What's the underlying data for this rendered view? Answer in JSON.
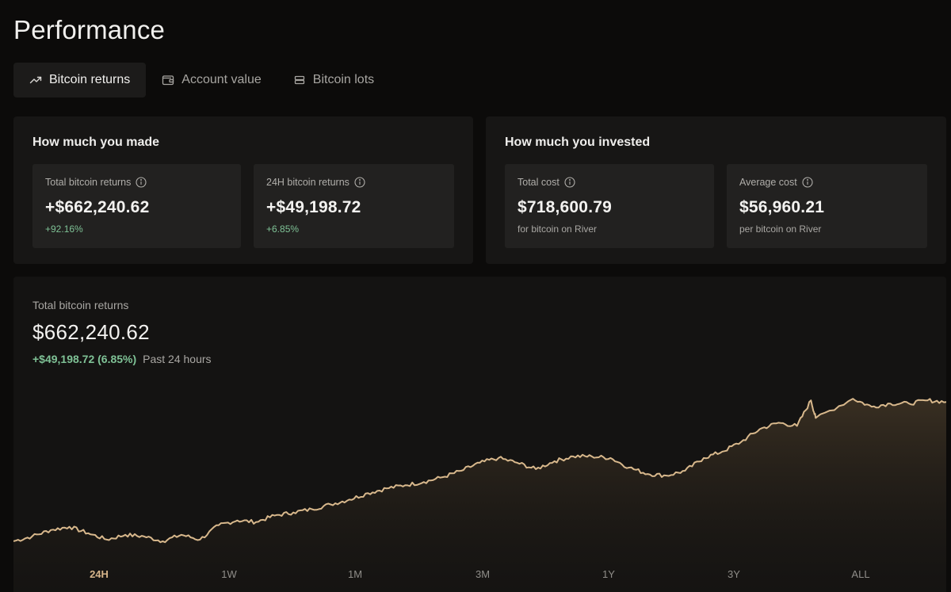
{
  "page": {
    "title": "Performance"
  },
  "tabs": [
    {
      "label": "Bitcoin returns",
      "icon": "trending-up-icon",
      "active": true
    },
    {
      "label": "Account value",
      "icon": "wallet-icon",
      "active": false
    },
    {
      "label": "Bitcoin lots",
      "icon": "stack-icon",
      "active": false
    }
  ],
  "made": {
    "title": "How much you made",
    "total": {
      "label": "Total bitcoin returns",
      "value": "+$662,240.62",
      "sub": "+92.16%"
    },
    "day": {
      "label": "24H bitcoin returns",
      "value": "+$49,198.72",
      "sub": "+6.85%"
    }
  },
  "invested": {
    "title": "How much you invested",
    "total": {
      "label": "Total cost",
      "value": "$718,600.79",
      "sub": "for bitcoin on River"
    },
    "avg": {
      "label": "Average cost",
      "value": "$56,960.21",
      "sub": "per bitcoin on River"
    }
  },
  "chart": {
    "label": "Total bitcoin returns",
    "value": "$662,240.62",
    "change": "+$49,198.72 (6.85%)",
    "period": "Past 24 hours",
    "ranges": [
      "24H",
      "1W",
      "1M",
      "3M",
      "1Y",
      "3Y",
      "ALL"
    ],
    "active_range": "24H"
  },
  "colors": {
    "accent": "#d6b48a",
    "positive": "#7fc296",
    "line": "#d8b88c"
  },
  "chart_data": {
    "type": "area",
    "title": "Total bitcoin returns",
    "xlabel": "",
    "ylabel": "",
    "x_ticks": [
      "24H",
      "1W",
      "1M",
      "3M",
      "1Y",
      "3Y",
      "ALL"
    ],
    "ylim": [
      0,
      1
    ],
    "grid": false,
    "legend": "none",
    "series": [
      {
        "name": "Total bitcoin returns (relative)",
        "x": [
          0,
          0.02,
          0.04,
          0.06,
          0.08,
          0.1,
          0.12,
          0.14,
          0.16,
          0.18,
          0.2,
          0.22,
          0.24,
          0.26,
          0.28,
          0.3,
          0.32,
          0.34,
          0.36,
          0.38,
          0.4,
          0.42,
          0.44,
          0.46,
          0.48,
          0.5,
          0.52,
          0.54,
          0.56,
          0.58,
          0.6,
          0.62,
          0.64,
          0.66,
          0.68,
          0.7,
          0.72,
          0.74,
          0.76,
          0.78,
          0.8,
          0.82,
          0.84,
          0.86,
          0.855,
          0.9,
          0.92,
          0.94,
          0.96,
          0.98,
          1.0
        ],
        "values": [
          0.04,
          0.07,
          0.11,
          0.13,
          0.09,
          0.05,
          0.08,
          0.07,
          0.04,
          0.08,
          0.05,
          0.14,
          0.17,
          0.16,
          0.2,
          0.22,
          0.24,
          0.27,
          0.3,
          0.34,
          0.37,
          0.39,
          0.41,
          0.44,
          0.48,
          0.53,
          0.56,
          0.53,
          0.49,
          0.54,
          0.57,
          0.57,
          0.56,
          0.5,
          0.46,
          0.45,
          0.48,
          0.56,
          0.6,
          0.66,
          0.74,
          0.78,
          0.76,
          0.81,
          0.92,
          0.93,
          0.88,
          0.9,
          0.9,
          0.92,
          0.91
        ]
      }
    ]
  }
}
